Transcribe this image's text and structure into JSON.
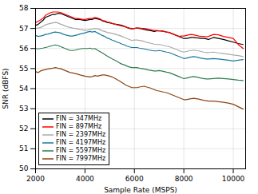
{
  "chart_data": {
    "type": "line",
    "xlabel": "Sample Rate (MSPS)",
    "ylabel": "SNR (dBFS)",
    "xlim": [
      2000,
      10500
    ],
    "ylim": [
      50,
      58
    ],
    "xticks": [
      2000,
      4000,
      6000,
      8000,
      10000
    ],
    "yticks": [
      50,
      51,
      52,
      53,
      54,
      55,
      56,
      57,
      58
    ],
    "grid": true,
    "legend": "lower left",
    "x": [
      2000,
      2100,
      2200,
      2300,
      2400,
      2500,
      2600,
      2700,
      2800,
      2900,
      3000,
      3100,
      3200,
      3300,
      3400,
      3500,
      3600,
      3700,
      3800,
      3900,
      4000,
      4100,
      4200,
      4300,
      4400,
      4500,
      4600,
      4700,
      4800,
      4900,
      5000,
      5100,
      5200,
      5300,
      5400,
      5500,
      5600,
      5700,
      5800,
      5900,
      6000,
      6100,
      6200,
      6300,
      6400,
      6500,
      6600,
      6700,
      6800,
      6900,
      7000,
      7100,
      7200,
      7300,
      7400,
      7500,
      7600,
      7700,
      7800,
      7900,
      8000,
      8100,
      8200,
      8300,
      8400,
      8500,
      8600,
      8700,
      8800,
      8900,
      9000,
      9200,
      9400,
      9600,
      9800,
      10000,
      10200,
      10400
    ],
    "series": [
      {
        "name": "FIN = 347MHz",
        "color": "#000000",
        "values": [
          57.15,
          57.2,
          57.3,
          57.4,
          57.55,
          57.6,
          57.65,
          57.7,
          57.7,
          57.75,
          57.75,
          57.7,
          57.65,
          57.6,
          57.55,
          57.5,
          57.45,
          57.45,
          57.45,
          57.42,
          57.4,
          57.42,
          57.45,
          57.45,
          57.5,
          57.48,
          57.45,
          57.38,
          57.35,
          57.3,
          57.28,
          57.25,
          57.22,
          57.2,
          57.18,
          57.15,
          57.1,
          57.05,
          57.0,
          56.98,
          57.0,
          57.02,
          57.0,
          56.98,
          56.95,
          56.92,
          56.9,
          56.88,
          56.85,
          56.88,
          56.88,
          56.87,
          56.85,
          56.82,
          56.8,
          56.75,
          56.7,
          56.65,
          56.6,
          56.55,
          56.5,
          56.5,
          56.52,
          56.55,
          56.55,
          56.53,
          56.52,
          56.5,
          56.5,
          56.48,
          56.45,
          56.55,
          56.5,
          56.45,
          56.38,
          56.32,
          56.25,
          56.2
        ]
      },
      {
        "name": "FIN = 897MHz",
        "color": "#ff0000",
        "values": [
          57.3,
          57.35,
          57.42,
          57.5,
          57.65,
          57.72,
          57.78,
          57.82,
          57.82,
          57.82,
          57.8,
          57.75,
          57.7,
          57.65,
          57.6,
          57.55,
          57.5,
          57.5,
          57.48,
          57.45,
          57.45,
          57.48,
          57.5,
          57.5,
          57.55,
          57.52,
          57.48,
          57.4,
          57.38,
          57.32,
          57.3,
          57.25,
          57.22,
          57.18,
          57.15,
          57.12,
          57.1,
          57.05,
          57.02,
          57.0,
          57.0,
          57.02,
          57.02,
          57.0,
          57.0,
          56.98,
          56.95,
          56.92,
          56.9,
          56.9,
          56.88,
          56.88,
          56.85,
          56.82,
          56.8,
          56.75,
          56.7,
          56.65,
          56.6,
          56.62,
          56.62,
          56.65,
          56.68,
          56.7,
          56.68,
          56.65,
          56.62,
          56.6,
          56.6,
          56.58,
          56.6,
          56.7,
          56.68,
          56.6,
          56.55,
          56.5,
          56.2,
          56.0
        ]
      },
      {
        "name": "FIN = 2397MHz",
        "color": "#aaaaaa",
        "values": [
          57.0,
          57.02,
          57.05,
          57.1,
          57.18,
          57.22,
          57.25,
          57.28,
          57.3,
          57.28,
          57.22,
          57.18,
          57.12,
          57.08,
          57.05,
          57.02,
          57.0,
          56.98,
          56.95,
          56.93,
          56.9,
          56.92,
          56.95,
          56.97,
          57.0,
          56.98,
          56.95,
          56.88,
          56.85,
          56.8,
          56.78,
          56.75,
          56.72,
          56.68,
          56.65,
          56.6,
          56.55,
          56.5,
          56.45,
          56.4,
          56.42,
          56.42,
          56.4,
          56.38,
          56.35,
          56.3,
          56.28,
          56.25,
          56.22,
          56.2,
          56.2,
          56.18,
          56.15,
          56.12,
          56.1,
          56.05,
          56.0,
          55.95,
          55.9,
          55.85,
          55.82,
          55.85,
          55.88,
          55.9,
          55.92,
          55.9,
          55.88,
          55.85,
          55.82,
          55.8,
          55.8,
          55.82,
          55.78,
          55.75,
          55.72,
          55.68,
          55.65,
          55.6
        ]
      },
      {
        "name": "FIN = 4197MHz",
        "color": "#1a7a9a",
        "values": [
          56.65,
          56.6,
          56.62,
          56.65,
          56.7,
          56.72,
          56.75,
          56.8,
          56.82,
          56.8,
          56.78,
          56.72,
          56.68,
          56.65,
          56.62,
          56.62,
          56.65,
          56.68,
          56.72,
          56.75,
          56.78,
          56.82,
          56.85,
          56.82,
          56.85,
          56.78,
          56.72,
          56.65,
          56.6,
          56.52,
          56.48,
          56.42,
          56.38,
          56.32,
          56.28,
          56.22,
          56.18,
          56.12,
          56.08,
          56.05,
          56.05,
          56.05,
          56.02,
          56.0,
          55.98,
          55.95,
          55.92,
          55.9,
          55.88,
          55.88,
          55.9,
          55.88,
          55.85,
          55.82,
          55.8,
          55.75,
          55.7,
          55.65,
          55.6,
          55.55,
          55.5,
          55.52,
          55.55,
          55.58,
          55.6,
          55.58,
          55.55,
          55.52,
          55.5,
          55.48,
          55.48,
          55.5,
          55.48,
          55.45,
          55.42,
          55.38,
          55.42,
          55.45
        ]
      },
      {
        "name": "FIN = 5597MHz",
        "color": "#2e7d52",
        "values": [
          56.0,
          55.98,
          56.0,
          56.02,
          56.05,
          56.08,
          56.12,
          56.15,
          56.18,
          56.15,
          56.1,
          56.05,
          56.0,
          55.95,
          55.9,
          55.9,
          55.92,
          55.95,
          55.98,
          56.0,
          56.0,
          56.0,
          56.02,
          55.98,
          56.0,
          55.92,
          55.85,
          55.78,
          55.7,
          55.62,
          55.55,
          55.48,
          55.42,
          55.35,
          55.28,
          55.22,
          55.18,
          55.12,
          55.08,
          55.05,
          55.05,
          55.05,
          55.02,
          55.0,
          54.98,
          54.95,
          54.92,
          54.9,
          54.88,
          54.88,
          54.9,
          54.88,
          54.85,
          54.82,
          54.8,
          54.75,
          54.7,
          54.65,
          54.6,
          54.55,
          54.5,
          54.52,
          54.55,
          54.58,
          54.6,
          54.58,
          54.55,
          54.52,
          54.5,
          54.48,
          54.48,
          54.5,
          54.52,
          54.5,
          54.48,
          54.45,
          54.42,
          54.4
        ]
      },
      {
        "name": "FIN = 7997MHz",
        "color": "#8B4513",
        "values": [
          54.85,
          54.8,
          54.88,
          54.92,
          54.95,
          54.98,
          55.0,
          55.02,
          55.05,
          55.02,
          55.0,
          54.95,
          54.9,
          54.85,
          54.8,
          54.78,
          54.75,
          54.72,
          54.68,
          54.65,
          54.62,
          54.6,
          54.58,
          54.6,
          54.65,
          54.62,
          54.65,
          54.68,
          54.68,
          54.65,
          54.62,
          54.58,
          54.52,
          54.45,
          54.38,
          54.3,
          54.22,
          54.15,
          54.1,
          54.05,
          54.05,
          54.05,
          54.08,
          54.1,
          54.12,
          54.08,
          54.05,
          54.0,
          53.95,
          53.9,
          53.88,
          53.85,
          53.82,
          53.8,
          53.75,
          53.7,
          53.65,
          53.6,
          53.55,
          53.5,
          53.45,
          53.45,
          53.48,
          53.5,
          53.52,
          53.5,
          53.48,
          53.45,
          53.42,
          53.4,
          53.38,
          53.38,
          53.35,
          53.32,
          53.28,
          53.22,
          53.1,
          52.98
        ]
      }
    ]
  }
}
